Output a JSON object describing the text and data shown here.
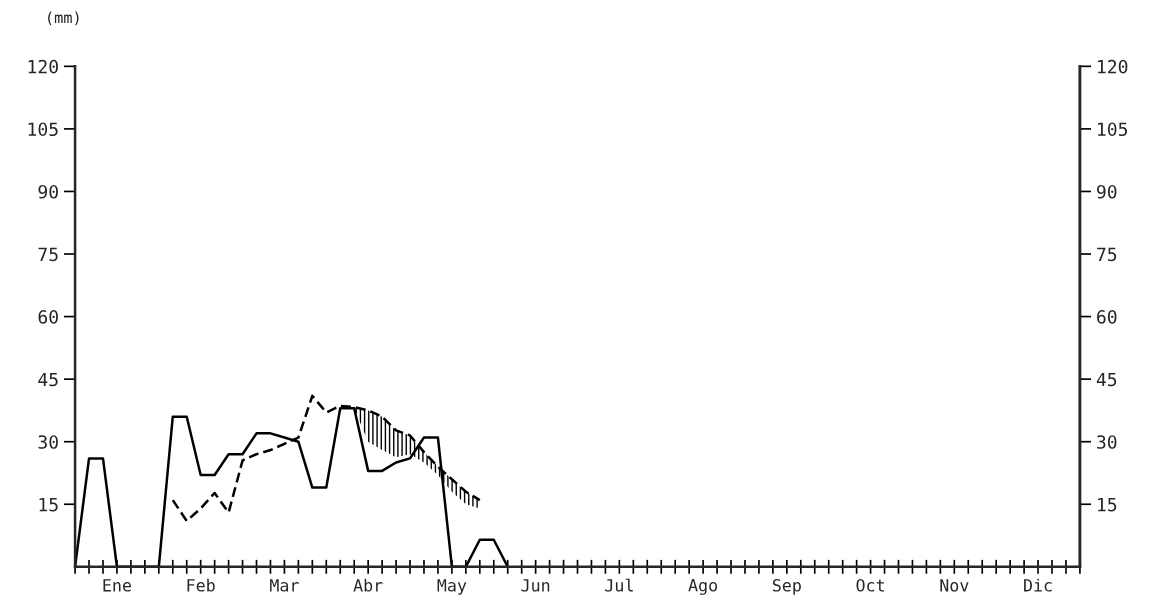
{
  "chart_data": {
    "type": "line",
    "ylabel": "(mm)",
    "categories": [
      null,
      null,
      null,
      "Ene",
      null,
      null,
      null,
      null,
      null,
      "Feb",
      null,
      null,
      null,
      null,
      null,
      "Mar",
      null,
      null,
      null,
      null,
      null,
      "Abr",
      null,
      null,
      null,
      null,
      null,
      "May",
      null,
      null,
      null,
      null,
      null,
      "Jun",
      null,
      null,
      null,
      null,
      null,
      "Jul",
      null,
      null,
      null,
      null,
      null,
      "Ago",
      null,
      null,
      null,
      null,
      null,
      "Sep",
      null,
      null,
      null,
      null,
      null,
      "Oct",
      null,
      null,
      null,
      null,
      null,
      "Nov",
      null,
      null,
      null,
      null,
      null,
      "Dic",
      null,
      null,
      null
    ],
    "ylim": [
      0,
      120
    ],
    "y2lim": [
      0,
      120
    ],
    "yticks": [
      15,
      30,
      45,
      60,
      75,
      90,
      105,
      120
    ],
    "y2ticks": [
      15,
      30,
      45,
      60,
      75,
      90,
      105,
      120
    ],
    "grid": false,
    "series": [
      {
        "color": "#000000",
        "line_style": "solid",
        "values": [
          0,
          26,
          26,
          0,
          0,
          0,
          0,
          36,
          36,
          22,
          22,
          27,
          27,
          32,
          32,
          31,
          30,
          19,
          19,
          38,
          38,
          23,
          23,
          25,
          26,
          31,
          31,
          0,
          0,
          6.5,
          6.5,
          0,
          null,
          null,
          null,
          null,
          null,
          null,
          null,
          null,
          null,
          null,
          null,
          null,
          null,
          null,
          null,
          null,
          null,
          null,
          null,
          null,
          null,
          null,
          null,
          null,
          null,
          null,
          null,
          null,
          null,
          null,
          null,
          null,
          null,
          null,
          null,
          null,
          null,
          null,
          null,
          null,
          null
        ]
      },
      {
        "color": "#000000",
        "line_style": "dashed",
        "values": [
          null,
          null,
          null,
          null,
          null,
          null,
          null,
          16,
          11,
          14,
          17.7,
          13,
          25.5,
          27,
          28,
          29.5,
          31,
          41,
          37,
          38.6,
          38.3,
          37.5,
          36,
          32.7,
          31.5,
          27.5,
          24,
          21,
          18,
          16,
          null,
          null,
          null,
          null,
          null,
          null,
          null,
          null,
          null,
          null,
          null,
          null,
          null,
          null,
          null,
          null,
          null,
          null,
          null,
          null,
          null,
          null,
          null,
          null,
          null,
          null,
          null,
          null,
          null,
          null,
          null,
          null,
          null,
          null,
          null,
          null,
          null,
          null,
          null,
          null,
          null,
          null,
          null
        ],
        "upper": [
          null,
          null,
          null,
          null,
          null,
          null,
          null,
          null,
          null,
          null,
          null,
          null,
          null,
          null,
          null,
          null,
          null,
          null,
          null,
          null,
          38.3,
          37.5,
          36,
          32.7,
          31.5,
          27.5,
          24,
          21,
          18,
          16,
          null,
          null,
          null,
          null,
          null,
          null,
          null,
          null,
          null,
          null,
          null,
          null,
          null,
          null,
          null,
          null,
          null,
          null,
          null,
          null,
          null,
          null,
          null,
          null,
          null,
          null,
          null,
          null,
          null,
          null,
          null,
          null,
          null,
          null,
          null,
          null,
          null,
          null,
          null,
          null,
          null,
          null,
          null
        ],
        "lower": [
          null,
          null,
          null,
          null,
          null,
          null,
          null,
          null,
          null,
          null,
          null,
          null,
          null,
          null,
          null,
          null,
          null,
          null,
          null,
          null,
          38,
          30,
          28,
          26.3,
          27,
          25,
          22,
          18,
          15,
          14,
          null,
          null,
          null,
          null,
          null,
          null,
          null,
          null,
          null,
          null,
          null,
          null,
          null,
          null,
          null,
          null,
          null,
          null,
          null,
          null,
          null,
          null,
          null,
          null,
          null,
          null,
          null,
          null,
          null,
          null,
          null,
          null,
          null,
          null,
          null,
          null,
          null,
          null,
          null,
          null,
          null,
          null,
          null
        ]
      }
    ]
  }
}
